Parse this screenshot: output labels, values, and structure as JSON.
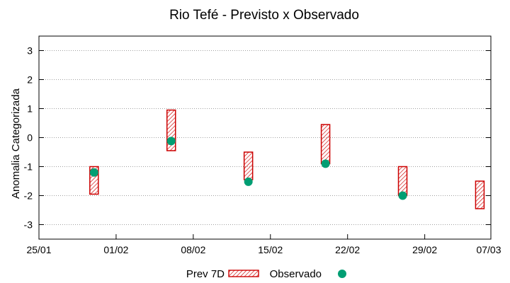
{
  "chart_data": {
    "type": "floating-bar-with-points",
    "title": "Rio Tefé - Previsto x Observado",
    "xlabel": "",
    "ylabel": "Anomalia Categorizada",
    "xlim": [
      0,
      41
    ],
    "ylim": [
      -3.5,
      3.5
    ],
    "yticks": [
      -3,
      -2,
      -1,
      0,
      1,
      2,
      3
    ],
    "xticks": [
      {
        "pos": 0,
        "label": "25/01"
      },
      {
        "pos": 7,
        "label": "01/02"
      },
      {
        "pos": 14,
        "label": "08/02"
      },
      {
        "pos": 21,
        "label": "15/02"
      },
      {
        "pos": 28,
        "label": "22/02"
      },
      {
        "pos": 35,
        "label": "29/02"
      },
      {
        "pos": 42,
        "label": "07/03"
      }
    ],
    "grid": true,
    "legend_position": "bottom",
    "series": [
      {
        "name": "Prev 7D",
        "kind": "range",
        "color": "#cc0000",
        "items": [
          {
            "x": 5,
            "low": -1.95,
            "high": -1.0
          },
          {
            "x": 12,
            "low": -0.45,
            "high": 0.95
          },
          {
            "x": 19,
            "low": -1.45,
            "high": -0.5
          },
          {
            "x": 26,
            "low": -0.9,
            "high": 0.45
          },
          {
            "x": 33,
            "low": -2.0,
            "high": -1.0
          },
          {
            "x": 40,
            "low": -2.45,
            "high": -1.5
          }
        ]
      },
      {
        "name": "Observado",
        "kind": "point",
        "color": "#009e73",
        "points": [
          {
            "x": 5,
            "y": -1.2
          },
          {
            "x": 12,
            "y": -0.12
          },
          {
            "x": 19,
            "y": -1.52
          },
          {
            "x": 26,
            "y": -0.9
          },
          {
            "x": 33,
            "y": -2.0
          }
        ]
      }
    ]
  }
}
